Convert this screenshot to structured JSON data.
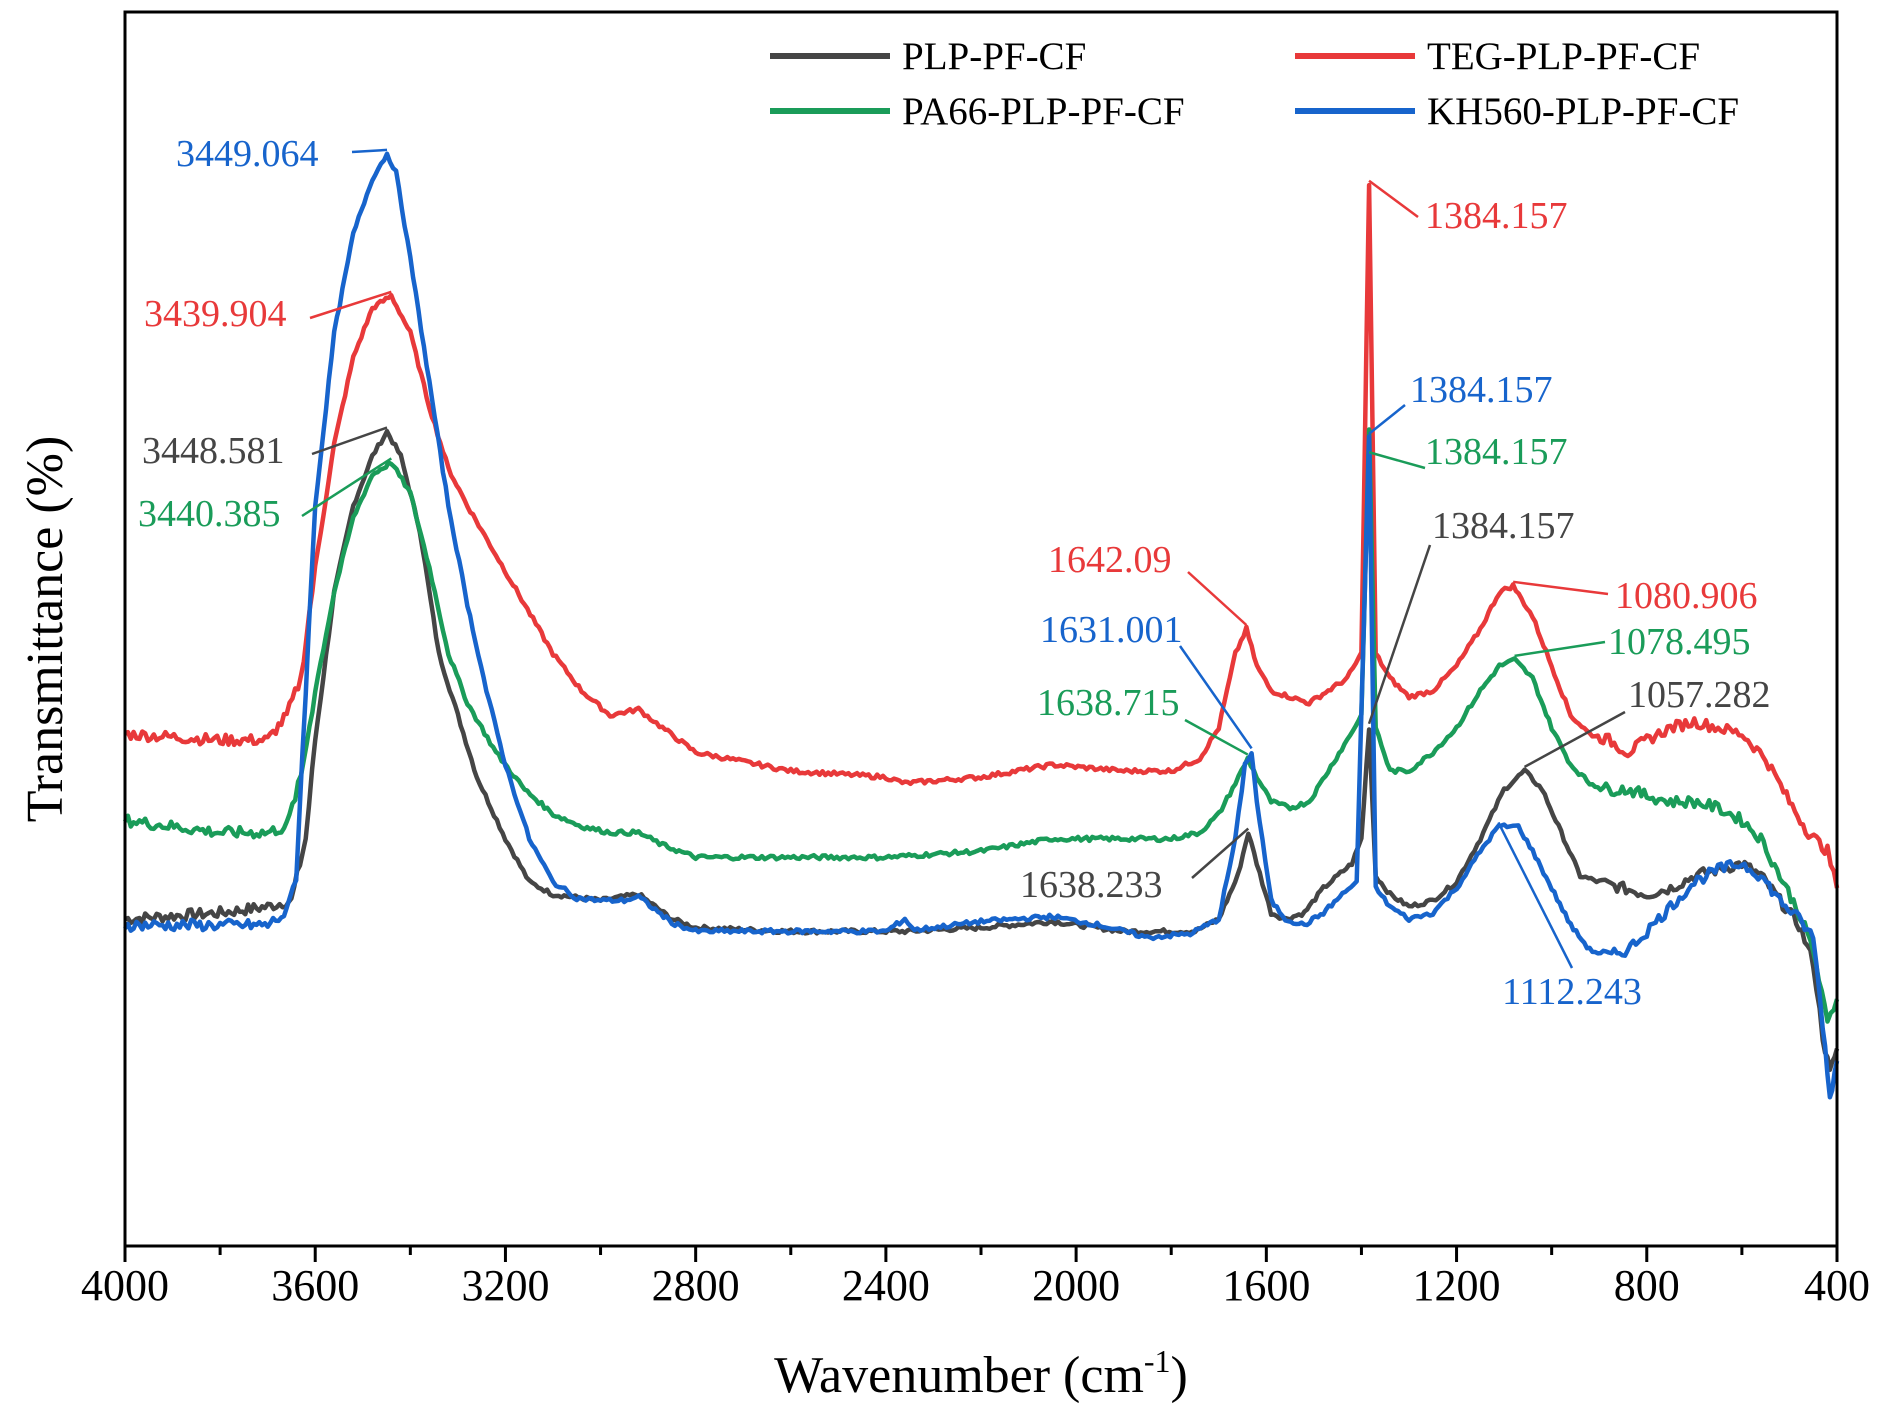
{
  "chart_data": {
    "type": "line",
    "title": "",
    "xlabel": "Wavenumber (cm",
    "xlabel_sup": "-1",
    "xlabel_close": ")",
    "ylabel": "Transmittance (%)",
    "xlim": [
      4000,
      400
    ],
    "ylim": [
      0,
      100
    ],
    "x_reversed": true,
    "y_ticks_shown": false,
    "x_ticks": [
      "4000",
      "3600",
      "3200",
      "2800",
      "2400",
      "2000",
      "1600",
      "1200",
      "800",
      "400"
    ],
    "x_tick_values": [
      4000,
      3600,
      3200,
      2800,
      2400,
      2000,
      1600,
      1200,
      800,
      400
    ],
    "legend_position": "top-right",
    "series": [
      {
        "name": "PLP-PF-CF",
        "color": "#454545",
        "points": [
          [
            4000,
            26.5
          ],
          [
            3800,
            27
          ],
          [
            3700,
            27.5
          ],
          [
            3650,
            28
          ],
          [
            3620,
            33
          ],
          [
            3600,
            41
          ],
          [
            3560,
            53
          ],
          [
            3520,
            60
          ],
          [
            3480,
            64
          ],
          [
            3449,
            66
          ],
          [
            3420,
            64
          ],
          [
            3380,
            58
          ],
          [
            3340,
            48
          ],
          [
            3300,
            43
          ],
          [
            3260,
            38
          ],
          [
            3200,
            33
          ],
          [
            3150,
            29.5
          ],
          [
            3100,
            28.5
          ],
          [
            3000,
            28
          ],
          [
            2920,
            28.5
          ],
          [
            2850,
            26.5
          ],
          [
            2800,
            25.8
          ],
          [
            2600,
            25.5
          ],
          [
            2400,
            25.5
          ],
          [
            2360,
            25.5
          ],
          [
            2200,
            25.8
          ],
          [
            2050,
            26.3
          ],
          [
            1900,
            25.5
          ],
          [
            1750,
            25.5
          ],
          [
            1700,
            26.5
          ],
          [
            1660,
            30
          ],
          [
            1638,
            33.5
          ],
          [
            1620,
            31
          ],
          [
            1590,
            27
          ],
          [
            1560,
            26.5
          ],
          [
            1520,
            27
          ],
          [
            1480,
            29
          ],
          [
            1420,
            31
          ],
          [
            1400,
            33
          ],
          [
            1384,
            42
          ],
          [
            1370,
            30
          ],
          [
            1340,
            28.5
          ],
          [
            1300,
            27.5
          ],
          [
            1250,
            28
          ],
          [
            1200,
            29.5
          ],
          [
            1150,
            33
          ],
          [
            1100,
            37
          ],
          [
            1057,
            38.5
          ],
          [
            1020,
            37
          ],
          [
            980,
            33.5
          ],
          [
            940,
            30
          ],
          [
            900,
            29.5
          ],
          [
            850,
            29
          ],
          [
            800,
            28.5
          ],
          [
            750,
            29
          ],
          [
            700,
            30
          ],
          [
            650,
            30.5
          ],
          [
            600,
            31
          ],
          [
            560,
            30
          ],
          [
            520,
            28
          ],
          [
            480,
            26
          ],
          [
            450,
            23
          ],
          [
            430,
            17
          ],
          [
            415,
            14
          ],
          [
            400,
            16
          ]
        ]
      },
      {
        "name": "TEG-PLP-PF-CF",
        "color": "#e8393a",
        "points": [
          [
            4000,
            41.5
          ],
          [
            3800,
            41
          ],
          [
            3700,
            41
          ],
          [
            3660,
            43
          ],
          [
            3630,
            46
          ],
          [
            3600,
            55
          ],
          [
            3560,
            65
          ],
          [
            3520,
            72
          ],
          [
            3480,
            76
          ],
          [
            3440,
            77
          ],
          [
            3400,
            74
          ],
          [
            3360,
            68
          ],
          [
            3320,
            63
          ],
          [
            3280,
            60
          ],
          [
            3220,
            56
          ],
          [
            3160,
            52
          ],
          [
            3100,
            48
          ],
          [
            3040,
            45
          ],
          [
            2980,
            43
          ],
          [
            2920,
            43.5
          ],
          [
            2870,
            42
          ],
          [
            2800,
            40
          ],
          [
            2600,
            38.5
          ],
          [
            2400,
            38
          ],
          [
            2360,
            37.5
          ],
          [
            2200,
            38
          ],
          [
            2050,
            39
          ],
          [
            1900,
            38.5
          ],
          [
            1800,
            38.5
          ],
          [
            1740,
            39.5
          ],
          [
            1700,
            42
          ],
          [
            1665,
            48
          ],
          [
            1642,
            50
          ],
          [
            1620,
            47
          ],
          [
            1590,
            45
          ],
          [
            1550,
            44.5
          ],
          [
            1510,
            44
          ],
          [
            1470,
            45
          ],
          [
            1430,
            46
          ],
          [
            1400,
            48
          ],
          [
            1384,
            86
          ],
          [
            1370,
            48
          ],
          [
            1340,
            46
          ],
          [
            1300,
            44.5
          ],
          [
            1250,
            45
          ],
          [
            1200,
            47
          ],
          [
            1150,
            50
          ],
          [
            1110,
            53
          ],
          [
            1081,
            53.5
          ],
          [
            1040,
            51
          ],
          [
            1000,
            47
          ],
          [
            960,
            43
          ],
          [
            920,
            41.5
          ],
          [
            880,
            41
          ],
          [
            840,
            40
          ],
          [
            800,
            41
          ],
          [
            750,
            42
          ],
          [
            700,
            42.5
          ],
          [
            650,
            42
          ],
          [
            600,
            41.5
          ],
          [
            550,
            39.5
          ],
          [
            500,
            36
          ],
          [
            460,
            33.5
          ],
          [
            420,
            32
          ],
          [
            400,
            29
          ]
        ]
      },
      {
        "name": "PA66-PLP-PF-CF",
        "color": "#1a9c59",
        "points": [
          [
            4000,
            34.5
          ],
          [
            3800,
            33.5
          ],
          [
            3700,
            33.5
          ],
          [
            3660,
            34
          ],
          [
            3630,
            38
          ],
          [
            3600,
            45
          ],
          [
            3560,
            53
          ],
          [
            3520,
            59
          ],
          [
            3480,
            62.5
          ],
          [
            3440,
            63.5
          ],
          [
            3400,
            61
          ],
          [
            3360,
            55
          ],
          [
            3320,
            48
          ],
          [
            3280,
            44
          ],
          [
            3220,
            40
          ],
          [
            3160,
            37
          ],
          [
            3100,
            35
          ],
          [
            3040,
            34
          ],
          [
            2980,
            33.5
          ],
          [
            2920,
            33.5
          ],
          [
            2870,
            32.5
          ],
          [
            2800,
            31.5
          ],
          [
            2600,
            31.5
          ],
          [
            2400,
            31.5
          ],
          [
            2200,
            32
          ],
          [
            2050,
            33
          ],
          [
            1900,
            33
          ],
          [
            1800,
            33
          ],
          [
            1740,
            33.5
          ],
          [
            1700,
            35
          ],
          [
            1665,
            37.5
          ],
          [
            1639,
            39.5
          ],
          [
            1620,
            38
          ],
          [
            1590,
            36
          ],
          [
            1550,
            35.5
          ],
          [
            1510,
            36
          ],
          [
            1470,
            38.5
          ],
          [
            1430,
            41
          ],
          [
            1400,
            43
          ],
          [
            1384,
            66
          ],
          [
            1370,
            42
          ],
          [
            1340,
            38.5
          ],
          [
            1300,
            38.5
          ],
          [
            1250,
            40
          ],
          [
            1200,
            42
          ],
          [
            1150,
            45
          ],
          [
            1110,
            47
          ],
          [
            1078,
            47.5
          ],
          [
            1040,
            46
          ],
          [
            1000,
            42
          ],
          [
            960,
            39
          ],
          [
            920,
            37.5
          ],
          [
            880,
            37
          ],
          [
            840,
            37
          ],
          [
            800,
            36.5
          ],
          [
            750,
            36
          ],
          [
            700,
            36
          ],
          [
            650,
            35.5
          ],
          [
            600,
            34.5
          ],
          [
            560,
            33
          ],
          [
            520,
            30
          ],
          [
            480,
            27
          ],
          [
            450,
            24
          ],
          [
            420,
            18
          ],
          [
            400,
            20
          ]
        ]
      },
      {
        "name": "KH560-PLP-PF-CF",
        "color": "#1764cc",
        "points": [
          [
            4000,
            26
          ],
          [
            3800,
            26
          ],
          [
            3700,
            26
          ],
          [
            3660,
            27
          ],
          [
            3640,
            30
          ],
          [
            3620,
            45
          ],
          [
            3600,
            60
          ],
          [
            3560,
            74
          ],
          [
            3520,
            82
          ],
          [
            3480,
            86.5
          ],
          [
            3449,
            88.5
          ],
          [
            3430,
            87
          ],
          [
            3400,
            80
          ],
          [
            3360,
            70
          ],
          [
            3320,
            60
          ],
          [
            3280,
            52
          ],
          [
            3240,
            45
          ],
          [
            3200,
            39
          ],
          [
            3150,
            33
          ],
          [
            3100,
            29.5
          ],
          [
            3050,
            28.2
          ],
          [
            3000,
            28
          ],
          [
            2950,
            28
          ],
          [
            2920,
            28.3
          ],
          [
            2850,
            26.2
          ],
          [
            2800,
            25.5
          ],
          [
            2600,
            25.5
          ],
          [
            2400,
            25.5
          ],
          [
            2360,
            26.5
          ],
          [
            2340,
            25.6
          ],
          [
            2200,
            26.3
          ],
          [
            2050,
            26.7
          ],
          [
            1950,
            26
          ],
          [
            1850,
            25
          ],
          [
            1760,
            25.3
          ],
          [
            1700,
            26.5
          ],
          [
            1665,
            33
          ],
          [
            1645,
            39
          ],
          [
            1631,
            40
          ],
          [
            1620,
            36
          ],
          [
            1590,
            28
          ],
          [
            1560,
            26.5
          ],
          [
            1520,
            26
          ],
          [
            1480,
            27
          ],
          [
            1440,
            28.5
          ],
          [
            1410,
            29.5
          ],
          [
            1384,
            65.5
          ],
          [
            1370,
            29
          ],
          [
            1340,
            27.5
          ],
          [
            1300,
            26.5
          ],
          [
            1250,
            27
          ],
          [
            1200,
            29
          ],
          [
            1150,
            32
          ],
          [
            1112,
            34
          ],
          [
            1070,
            34
          ],
          [
            1040,
            32
          ],
          [
            1000,
            29
          ],
          [
            960,
            26
          ],
          [
            920,
            24
          ],
          [
            880,
            23.5
          ],
          [
            840,
            24
          ],
          [
            800,
            25.5
          ],
          [
            750,
            27.5
          ],
          [
            700,
            29.5
          ],
          [
            650,
            30.5
          ],
          [
            600,
            31
          ],
          [
            560,
            30
          ],
          [
            520,
            28
          ],
          [
            480,
            26.5
          ],
          [
            450,
            25
          ],
          [
            430,
            18
          ],
          [
            415,
            12
          ],
          [
            400,
            15
          ]
        ]
      }
    ],
    "annotations": [
      {
        "text": "3449.064",
        "color": "#1764cc",
        "x": 3449,
        "y": 88.5,
        "series": "KH560-PLP-PF-CF"
      },
      {
        "text": "3439.904",
        "color": "#e8393a",
        "x": 3440,
        "y": 77,
        "series": "TEG-PLP-PF-CF"
      },
      {
        "text": "3448.581",
        "color": "#454545",
        "x": 3449,
        "y": 66,
        "series": "PLP-PF-CF"
      },
      {
        "text": "3440.385",
        "color": "#1a9c59",
        "x": 3440,
        "y": 63.5,
        "series": "PA66-PLP-PF-CF"
      },
      {
        "text": "1384.157",
        "color": "#e8393a",
        "x": 1384,
        "y": 86,
        "series": "TEG-PLP-PF-CF"
      },
      {
        "text": "1384.157",
        "color": "#1764cc",
        "x": 1384,
        "y": 65.5,
        "series": "KH560-PLP-PF-CF"
      },
      {
        "text": "1384.157",
        "color": "#1a9c59",
        "x": 1384,
        "y": 64,
        "series": "PA66-PLP-PF-CF"
      },
      {
        "text": "1384.157",
        "color": "#454545",
        "x": 1384,
        "y": 42,
        "series": "PLP-PF-CF"
      },
      {
        "text": "1642.09",
        "color": "#e8393a",
        "x": 1642,
        "y": 50,
        "series": "TEG-PLP-PF-CF"
      },
      {
        "text": "1631.001",
        "color": "#1764cc",
        "x": 1631,
        "y": 40,
        "series": "KH560-PLP-PF-CF"
      },
      {
        "text": "1638.715",
        "color": "#1a9c59",
        "x": 1639,
        "y": 39.5,
        "series": "PA66-PLP-PF-CF"
      },
      {
        "text": "1638.233",
        "color": "#454545",
        "x": 1638,
        "y": 33.5,
        "series": "PLP-PF-CF"
      },
      {
        "text": "1080.906",
        "color": "#e8393a",
        "x": 1081,
        "y": 53.5,
        "series": "TEG-PLP-PF-CF"
      },
      {
        "text": "1078.495",
        "color": "#1a9c59",
        "x": 1078,
        "y": 47.5,
        "series": "PA66-PLP-PF-CF"
      },
      {
        "text": "1057.282",
        "color": "#454545",
        "x": 1057,
        "y": 38.5,
        "series": "PLP-PF-CF"
      },
      {
        "text": "1112.243",
        "color": "#1764cc",
        "x": 1112,
        "y": 34,
        "series": "KH560-PLP-PF-CF"
      }
    ]
  }
}
